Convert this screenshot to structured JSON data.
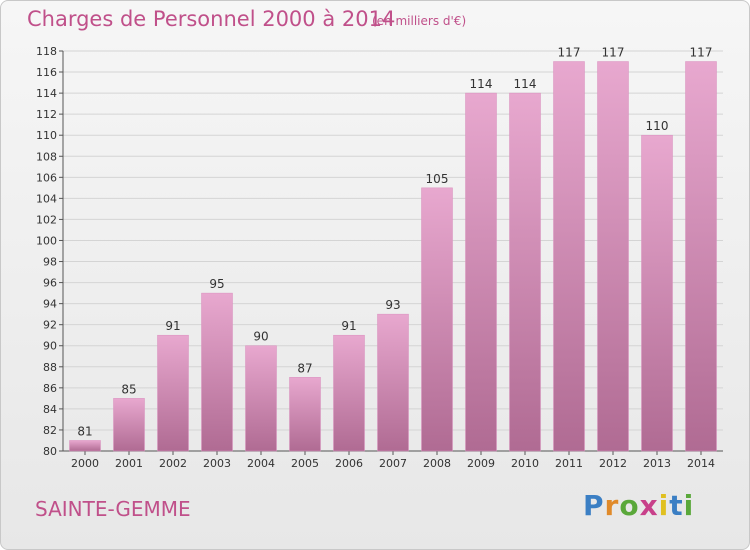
{
  "title": "Charges de Personnel 2000 à 2014",
  "unit": "(en milliers d'€)",
  "commune": "SAINTE-GEMME",
  "logo": "Proxiti",
  "chart_data": {
    "type": "bar",
    "title": "Charges de Personnel 2000 à 2014",
    "ylabel": "(en milliers d'€)",
    "xlabel": "",
    "categories": [
      "2000",
      "2001",
      "2002",
      "2003",
      "2004",
      "2005",
      "2006",
      "2007",
      "2008",
      "2009",
      "2010",
      "2011",
      "2012",
      "2013",
      "2014"
    ],
    "values": [
      81,
      85,
      91,
      95,
      90,
      87,
      91,
      93,
      105,
      114,
      114,
      117,
      117,
      110,
      117
    ],
    "ylim": [
      80,
      118
    ],
    "ytick_step": 2,
    "grid": true,
    "bar_color": "#cc79a7"
  }
}
